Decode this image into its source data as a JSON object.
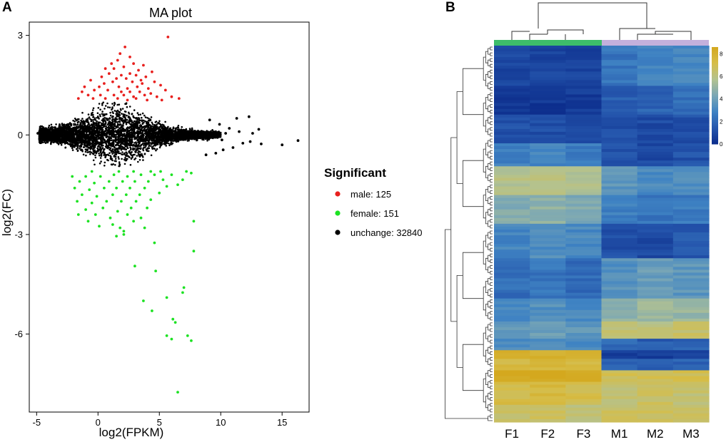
{
  "panels": {
    "a_label": "A",
    "b_label": "B"
  },
  "chart_data": [
    {
      "panel": "A",
      "type": "scatter",
      "title": "MA plot",
      "xlabel": "log2(FPKM)",
      "ylabel": "log2(FC)",
      "xlim": [
        -5.6,
        17.2
      ],
      "ylim": [
        -8.35,
        3.4
      ],
      "xticks": [
        -5,
        0,
        5,
        10,
        15
      ],
      "yticks": [
        3,
        0,
        -3,
        -6
      ],
      "xtick_labels": [
        "-5",
        "0",
        "5",
        "10",
        "15"
      ],
      "ytick_labels": [
        "3",
        "0",
        "-3",
        "-6"
      ],
      "grid": false,
      "legend": {
        "title": "Significant",
        "position": "right",
        "entries": [
          {
            "label": "male: 125",
            "color": "#e8201e"
          },
          {
            "label": "female: 151",
            "color": "#1de223"
          },
          {
            "label": "unchange: 32840",
            "color": "#000000"
          }
        ]
      },
      "series": [
        {
          "name": "male",
          "color": "#e8201e",
          "count": 125,
          "points": [
            [
              5.7,
              2.95
            ],
            [
              2.2,
              2.65
            ],
            [
              1.8,
              2.45
            ],
            [
              2.6,
              2.35
            ],
            [
              1.6,
              2.25
            ],
            [
              1.1,
              2.15
            ],
            [
              2.9,
              2.15
            ],
            [
              3.7,
              2.1
            ],
            [
              0.6,
              2.0
            ],
            [
              1.3,
              2.0
            ],
            [
              2.1,
              2.05
            ],
            [
              3.3,
              1.95
            ],
            [
              4.4,
              1.9
            ],
            [
              0.9,
              1.85
            ],
            [
              1.9,
              1.8
            ],
            [
              2.6,
              1.85
            ],
            [
              3.1,
              1.8
            ],
            [
              3.9,
              1.75
            ],
            [
              0.3,
              1.75
            ],
            [
              1.5,
              1.7
            ],
            [
              2.3,
              1.7
            ],
            [
              3.5,
              1.65
            ],
            [
              4.6,
              1.6
            ],
            [
              -0.6,
              1.65
            ],
            [
              0.5,
              1.55
            ],
            [
              1.2,
              1.6
            ],
            [
              2.8,
              1.6
            ],
            [
              3.6,
              1.55
            ],
            [
              5.1,
              1.5
            ],
            [
              -1.1,
              1.45
            ],
            [
              0.1,
              1.45
            ],
            [
              1.7,
              1.45
            ],
            [
              2.4,
              1.4
            ],
            [
              3.2,
              1.45
            ],
            [
              4.1,
              1.4
            ],
            [
              5.5,
              1.35
            ],
            [
              -1.3,
              1.3
            ],
            [
              -0.3,
              1.35
            ],
            [
              0.8,
              1.35
            ],
            [
              1.9,
              1.3
            ],
            [
              2.6,
              1.3
            ],
            [
              3.4,
              1.3
            ],
            [
              4.3,
              1.25
            ],
            [
              -0.8,
              1.2
            ],
            [
              0.2,
              1.2
            ],
            [
              1.3,
              1.2
            ],
            [
              2.1,
              1.2
            ],
            [
              2.9,
              1.15
            ],
            [
              3.8,
              1.2
            ],
            [
              4.8,
              1.15
            ],
            [
              6.0,
              1.15
            ],
            [
              -1.6,
              1.1
            ],
            [
              -0.4,
              1.1
            ],
            [
              0.6,
              1.1
            ],
            [
              1.6,
              1.1
            ],
            [
              2.4,
              1.05
            ],
            [
              3.1,
              1.1
            ],
            [
              4.0,
              1.05
            ],
            [
              5.2,
              1.05
            ],
            [
              6.6,
              1.1
            ]
          ]
        },
        {
          "name": "female",
          "color": "#1de223",
          "count": 151,
          "points": [
            [
              6.5,
              -7.75
            ],
            [
              6.0,
              -6.15
            ],
            [
              7.3,
              -6.05
            ],
            [
              7.6,
              -6.2
            ],
            [
              5.6,
              -6.05
            ],
            [
              6.3,
              -5.65
            ],
            [
              6.1,
              -5.55
            ],
            [
              4.4,
              -5.3
            ],
            [
              5.6,
              -4.9
            ],
            [
              3.7,
              -5.0
            ],
            [
              7.0,
              -4.6
            ],
            [
              6.9,
              -4.75
            ],
            [
              4.7,
              -4.1
            ],
            [
              3.0,
              -3.95
            ],
            [
              7.8,
              -3.5
            ],
            [
              4.6,
              -3.25
            ],
            [
              7.8,
              -2.6
            ],
            [
              2.1,
              -3.0
            ],
            [
              2.1,
              -2.9
            ],
            [
              1.5,
              -3.05
            ],
            [
              0.1,
              -2.75
            ],
            [
              1.8,
              -2.8
            ],
            [
              3.8,
              -2.8
            ],
            [
              -0.8,
              -2.6
            ],
            [
              1.2,
              -2.7
            ],
            [
              2.9,
              -2.6
            ],
            [
              -1.6,
              -2.4
            ],
            [
              -0.2,
              -2.4
            ],
            [
              1.0,
              -2.5
            ],
            [
              2.4,
              -2.4
            ],
            [
              3.5,
              -2.5
            ],
            [
              -1.0,
              -2.25
            ],
            [
              0.4,
              -2.2
            ],
            [
              1.6,
              -2.3
            ],
            [
              2.7,
              -2.2
            ],
            [
              4.0,
              -2.2
            ],
            [
              -1.7,
              -2.0
            ],
            [
              -0.5,
              -2.05
            ],
            [
              0.7,
              -2.0
            ],
            [
              1.9,
              -2.0
            ],
            [
              3.1,
              -2.0
            ],
            [
              4.3,
              -1.95
            ],
            [
              -1.3,
              -1.8
            ],
            [
              -0.1,
              -1.85
            ],
            [
              1.2,
              -1.8
            ],
            [
              2.3,
              -1.8
            ],
            [
              3.4,
              -1.8
            ],
            [
              5.0,
              -1.75
            ],
            [
              -1.9,
              -1.6
            ],
            [
              -0.7,
              -1.65
            ],
            [
              0.5,
              -1.6
            ],
            [
              1.5,
              -1.6
            ],
            [
              2.6,
              -1.6
            ],
            [
              3.8,
              -1.6
            ],
            [
              5.6,
              -1.55
            ],
            [
              6.5,
              -1.5
            ],
            [
              -1.5,
              -1.4
            ],
            [
              -0.3,
              -1.45
            ],
            [
              0.9,
              -1.4
            ],
            [
              2.0,
              -1.4
            ],
            [
              3.0,
              -1.4
            ],
            [
              4.1,
              -1.4
            ],
            [
              5.3,
              -1.35
            ],
            [
              6.9,
              -1.35
            ],
            [
              -2.1,
              -1.25
            ],
            [
              -1.0,
              -1.25
            ],
            [
              0.2,
              -1.25
            ],
            [
              1.3,
              -1.2
            ],
            [
              2.4,
              -1.25
            ],
            [
              3.5,
              -1.2
            ],
            [
              4.6,
              -1.2
            ],
            [
              6.0,
              -1.2
            ],
            [
              7.6,
              -1.15
            ],
            [
              -0.5,
              -1.1
            ],
            [
              1.7,
              -1.1
            ],
            [
              2.9,
              -1.1
            ],
            [
              4.3,
              -1.1
            ],
            [
              5.1,
              -1.1
            ],
            [
              7.2,
              -1.1
            ]
          ]
        },
        {
          "name": "unchange",
          "color": "#000000",
          "count": 32840,
          "points": [
            [
              16.3,
              -0.17
            ],
            [
              15.0,
              -0.3
            ],
            [
              13.1,
              0.17
            ],
            [
              13.3,
              -0.27
            ],
            [
              12.4,
              -0.2
            ],
            [
              12.3,
              0.55
            ],
            [
              11.3,
              0.5
            ],
            [
              12.6,
              0.05
            ],
            [
              11.8,
              -0.25
            ],
            [
              10.7,
              0.2
            ],
            [
              11.0,
              -0.38
            ],
            [
              11.5,
              0.1
            ],
            [
              10.2,
              -0.45
            ],
            [
              9.9,
              0.32
            ],
            [
              9.6,
              -0.55
            ],
            [
              10.4,
              0.05
            ],
            [
              9.1,
              0.45
            ],
            [
              8.8,
              -0.6
            ],
            [
              9.3,
              0.0
            ],
            [
              10.1,
              -0.15
            ],
            [
              -4.9,
              0.05
            ],
            [
              -4.6,
              -0.05
            ],
            [
              -4.7,
              0.08
            ],
            [
              -4.3,
              0.07
            ]
          ]
        }
      ]
    },
    {
      "panel": "B",
      "type": "heatmap",
      "title": "",
      "columns": [
        "F1",
        "F2",
        "F3",
        "M1",
        "M2",
        "M3"
      ],
      "column_groups": [
        {
          "name": "female",
          "columns": [
            "F1",
            "F2",
            "F3"
          ],
          "color": "#3dbd6a"
        },
        {
          "name": "male",
          "columns": [
            "M1",
            "M2",
            "M3"
          ],
          "color": "#c3b0dc"
        }
      ],
      "colorbar": {
        "ticks": [
          8,
          6,
          4,
          2,
          0
        ],
        "tick_labels": [
          "8",
          "6",
          "4",
          "2",
          "0"
        ],
        "range": [
          0,
          8.6
        ],
        "colors": [
          "#0c2d8c",
          "#2556ad",
          "#3f83c3",
          "#7aa7b5",
          "#b3c290",
          "#d6bd48",
          "#d4a81e"
        ]
      },
      "row_blocks": [
        {
          "rows": 14,
          "F": [
            0.9,
            0.8,
            0.8
          ],
          "M": [
            2.4,
            2.8,
            3.0
          ]
        },
        {
          "rows": 10,
          "F": [
            0.5,
            0.4,
            0.5
          ],
          "M": [
            1.6,
            1.9,
            2.2
          ]
        },
        {
          "rows": 10,
          "F": [
            1.2,
            1.1,
            1.0
          ],
          "M": [
            1.1,
            1.0,
            1.2
          ]
        },
        {
          "rows": 8,
          "F": [
            2.8,
            3.0,
            2.7
          ],
          "M": [
            1.2,
            1.0,
            1.3
          ]
        },
        {
          "rows": 10,
          "F": [
            5.8,
            6.0,
            5.7
          ],
          "M": [
            3.6,
            3.2,
            3.4
          ]
        },
        {
          "rows": 10,
          "F": [
            4.5,
            4.8,
            4.4
          ],
          "M": [
            2.8,
            2.4,
            2.6
          ]
        },
        {
          "rows": 12,
          "F": [
            3.0,
            3.3,
            3.1
          ],
          "M": [
            1.2,
            1.0,
            1.5
          ]
        },
        {
          "rows": 14,
          "F": [
            2.2,
            2.4,
            2.1
          ],
          "M": [
            3.4,
            3.9,
            3.6
          ]
        },
        {
          "rows": 8,
          "F": [
            3.2,
            3.4,
            3.1
          ],
          "M": [
            4.8,
            5.2,
            5.0
          ]
        },
        {
          "rows": 6,
          "F": [
            3.8,
            4.0,
            3.6
          ],
          "M": [
            6.4,
            6.0,
            6.6
          ]
        },
        {
          "rows": 4,
          "F": [
            3.2,
            3.4,
            3.0
          ],
          "M": [
            2.0,
            1.6,
            1.8
          ]
        },
        {
          "rows": 3,
          "F": [
            8.2,
            8.1,
            8.0
          ],
          "M": [
            0.6,
            0.6,
            0.9
          ]
        },
        {
          "rows": 4,
          "F": [
            7.4,
            7.6,
            7.5
          ],
          "M": [
            1.8,
            1.6,
            1.9
          ]
        },
        {
          "rows": 4,
          "F": [
            8.5,
            8.6,
            8.5
          ],
          "M": [
            6.8,
            7.0,
            6.9
          ]
        },
        {
          "rows": 8,
          "F": [
            7.2,
            7.4,
            7.1
          ],
          "M": [
            6.2,
            6.6,
            6.4
          ]
        },
        {
          "rows": 6,
          "F": [
            6.4,
            6.6,
            6.3
          ],
          "M": [
            6.6,
            6.8,
            6.7
          ]
        }
      ]
    }
  ]
}
